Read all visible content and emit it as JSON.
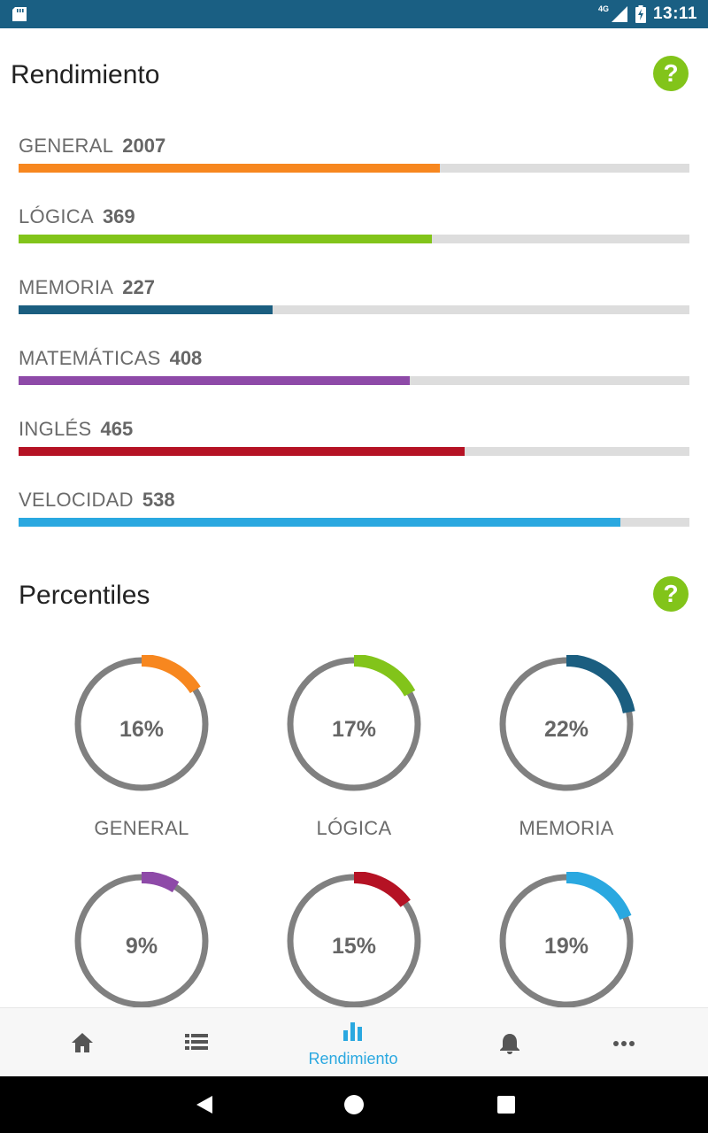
{
  "status_bar": {
    "network": "4G",
    "time": "13:11"
  },
  "rendimiento": {
    "title": "Rendimiento",
    "items": [
      {
        "name": "GENERAL",
        "value": "2007",
        "progress": 0.628,
        "color": "#f7871f"
      },
      {
        "name": "LÓGICA",
        "value": "369",
        "progress": 0.616,
        "color": "#82c41a"
      },
      {
        "name": "MEMORIA",
        "value": "227",
        "progress": 0.378,
        "color": "#1b5e80"
      },
      {
        "name": "MATEMÁTICAS",
        "value": "408",
        "progress": 0.583,
        "color": "#8e4aa8"
      },
      {
        "name": "INGLÉS",
        "value": "465",
        "progress": 0.665,
        "color": "#b51224"
      },
      {
        "name": "VELOCIDAD",
        "value": "538",
        "progress": 0.897,
        "color": "#2aa8e0"
      }
    ]
  },
  "percentiles": {
    "title": "Percentiles",
    "items": [
      {
        "name": "GENERAL",
        "value": "16%",
        "fraction": 0.16,
        "color": "#f7871f"
      },
      {
        "name": "LÓGICA",
        "value": "17%",
        "fraction": 0.17,
        "color": "#82c41a"
      },
      {
        "name": "MEMORIA",
        "value": "22%",
        "fraction": 0.22,
        "color": "#1b5e80"
      },
      {
        "name": "",
        "value": "9%",
        "fraction": 0.09,
        "color": "#8e4aa8"
      },
      {
        "name": "",
        "value": "15%",
        "fraction": 0.15,
        "color": "#b51224"
      },
      {
        "name": "",
        "value": "19%",
        "fraction": 0.19,
        "color": "#2aa8e0"
      }
    ]
  },
  "bottom_nav": {
    "items": [
      {
        "icon": "home-icon"
      },
      {
        "icon": "list-icon"
      },
      {
        "icon": "bar-chart-icon",
        "label": "Rendimiento",
        "active": true
      },
      {
        "icon": "bell-icon"
      },
      {
        "icon": "more-icon"
      }
    ]
  },
  "colors": {
    "status_bar": "#1a5f83",
    "help": "#82c41a",
    "active_nav": "#2aa8e0",
    "track": "#dddddd",
    "ring": "#808080"
  }
}
